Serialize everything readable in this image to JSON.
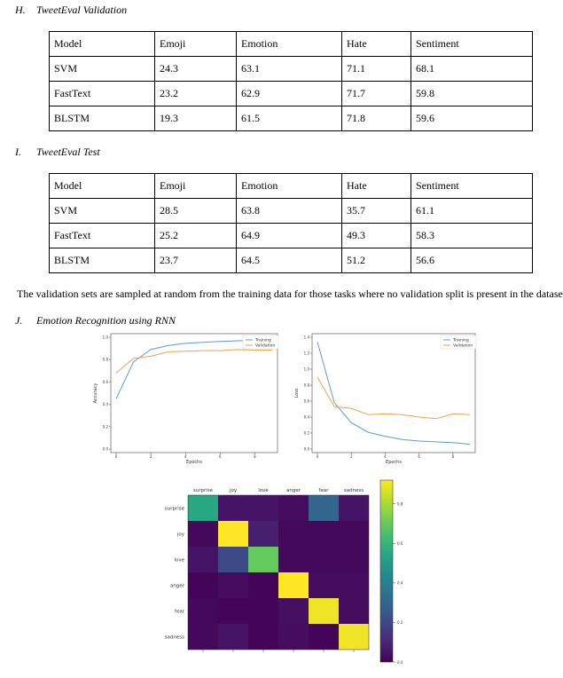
{
  "sections": {
    "h": {
      "number": "H.",
      "title": "TweetEval Validation"
    },
    "i": {
      "number": "I.",
      "title": "TweetEval Test"
    },
    "j": {
      "number": "J.",
      "title": "Emotion Recognition using RNN"
    }
  },
  "validation_table": {
    "headers": [
      "Model",
      "Emoji",
      "Emotion",
      "Hate",
      "Sentiment"
    ],
    "rows": [
      [
        "SVM",
        "24.3",
        "63.1",
        "71.1",
        "68.1"
      ],
      [
        "FastText",
        "23.2",
        "62.9",
        "71.7",
        "59.8"
      ],
      [
        "BLSTM",
        "19.3",
        "61.5",
        "71.8",
        "59.6"
      ]
    ]
  },
  "test_table": {
    "headers": [
      "Model",
      "Emoji",
      "Emotion",
      "Hate",
      "Sentiment"
    ],
    "rows": [
      [
        "SVM",
        "28.5",
        "63.8",
        "35.7",
        "61.1"
      ],
      [
        "FastText",
        "25.2",
        "64.9",
        "49.3",
        "58.3"
      ],
      [
        "BLSTM",
        "23.7",
        "64.5",
        "51.2",
        "56.6"
      ]
    ]
  },
  "paragraph": "The validation sets are sampled at random  from the training data for those tasks where no validation split is present in the dataset.",
  "chart_data": [
    {
      "type": "line",
      "xlabel": "Epochs",
      "ylabel": "Accuracy",
      "xlim": [
        0,
        9
      ],
      "ylim": [
        0.0,
        1.0
      ],
      "xticks": [
        "0",
        "2",
        "4",
        "6",
        "8"
      ],
      "yticks": [
        "0.0",
        "0.2",
        "0.4",
        "0.6",
        "0.8",
        "1.0"
      ],
      "legend_position": "top-right",
      "x": [
        0,
        1,
        2,
        3,
        4,
        5,
        6,
        7,
        8,
        9
      ],
      "series": [
        {
          "name": "Training",
          "color": "#5b9bd5",
          "values": [
            0.45,
            0.78,
            0.89,
            0.925,
            0.945,
            0.955,
            0.962,
            0.968,
            0.973,
            0.978
          ]
        },
        {
          "name": "Validation",
          "color": "#f0a04b",
          "values": [
            0.68,
            0.81,
            0.83,
            0.87,
            0.875,
            0.88,
            0.88,
            0.89,
            0.885,
            0.885
          ]
        }
      ]
    },
    {
      "type": "line",
      "xlabel": "Epochs",
      "ylabel": "Loss",
      "xlim": [
        0,
        9
      ],
      "ylim": [
        0.0,
        1.4
      ],
      "xticks": [
        "0",
        "2",
        "4",
        "6",
        "8"
      ],
      "yticks": [
        "0.0",
        "0.2",
        "0.4",
        "0.6",
        "0.8",
        "1.0",
        "1.2",
        "1.4"
      ],
      "legend_position": "top-right",
      "x": [
        0,
        1,
        2,
        3,
        4,
        5,
        6,
        7,
        8,
        9
      ],
      "series": [
        {
          "name": "Training",
          "color": "#5b9bd5",
          "values": [
            1.34,
            0.58,
            0.33,
            0.21,
            0.16,
            0.12,
            0.1,
            0.09,
            0.08,
            0.06
          ]
        },
        {
          "name": "Validation",
          "color": "#f0a04b",
          "values": [
            0.9,
            0.53,
            0.51,
            0.43,
            0.44,
            0.43,
            0.4,
            0.38,
            0.44,
            0.43
          ]
        }
      ]
    },
    {
      "type": "heatmap",
      "labels": [
        "surprise",
        "joy",
        "love",
        "anger",
        "fear",
        "sadness"
      ],
      "values": [
        [
          0.55,
          0.05,
          0.05,
          0.03,
          0.3,
          0.05
        ],
        [
          0.02,
          0.92,
          0.08,
          0.02,
          0.02,
          0.02
        ],
        [
          0.05,
          0.2,
          0.7,
          0.02,
          0.02,
          0.02
        ],
        [
          0.01,
          0.03,
          0.01,
          0.92,
          0.03,
          0.03
        ],
        [
          0.02,
          0.01,
          0.01,
          0.04,
          0.9,
          0.03
        ],
        [
          0.02,
          0.05,
          0.01,
          0.03,
          0.01,
          0.9
        ]
      ],
      "colorbar_ticks": [
        "0.0",
        "0.2",
        "0.4",
        "0.6",
        "0.8"
      ],
      "vmin": 0.0,
      "vmax": 0.92
    }
  ]
}
